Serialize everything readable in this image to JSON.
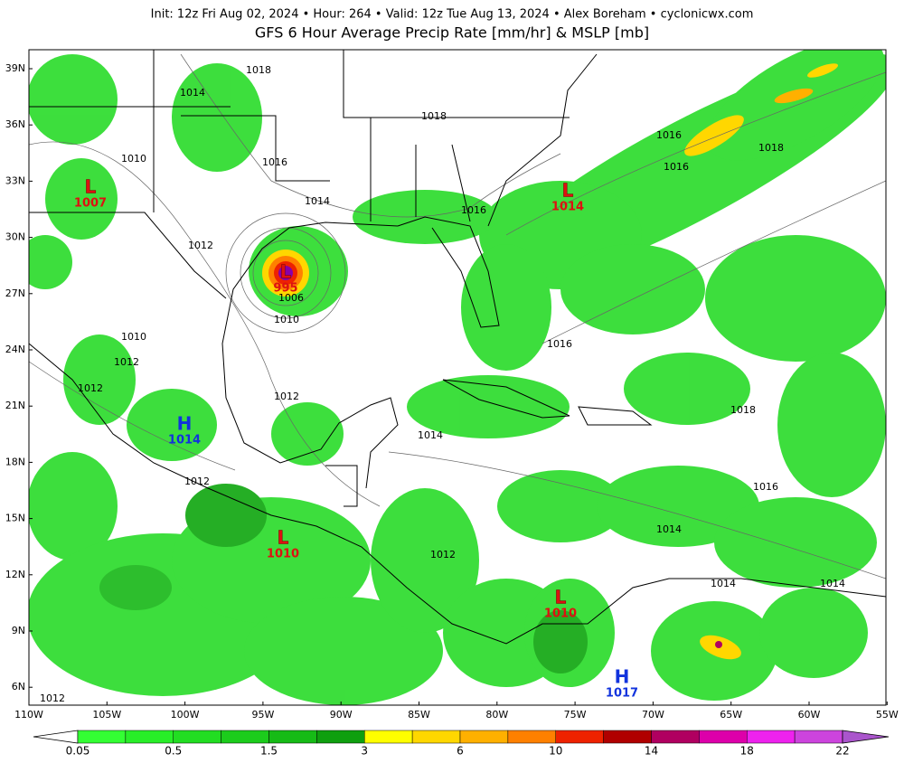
{
  "header": {
    "info": "Init: 12z Fri Aug 02, 2024 • Hour: 264 • Valid: 12z Tue Aug 13, 2024 • Alex Boreham • cyclonicwx.com",
    "title": "GFS 6 Hour Average Precip Rate [mm/hr] & MSLP [mb]"
  },
  "map": {
    "lat_labels": [
      "39N",
      "36N",
      "33N",
      "30N",
      "27N",
      "24N",
      "21N",
      "18N",
      "15N",
      "12N",
      "9N",
      "6N"
    ],
    "lon_labels": [
      "110W",
      "105W",
      "100W",
      "95W",
      "90W",
      "85W",
      "80W",
      "75W",
      "70W",
      "65W",
      "60W",
      "55W"
    ],
    "isobar_labels": [
      "1018",
      "1014",
      "1018",
      "1010",
      "1016",
      "1014",
      "1016",
      "1012",
      "1006",
      "1010",
      "1010",
      "1012",
      "1012",
      "1012",
      "1014",
      "1012",
      "1012",
      "1016",
      "1016",
      "1016",
      "1018",
      "1018",
      "1016",
      "1014",
      "1014",
      "1014",
      "1012"
    ],
    "systems": [
      {
        "letter": "L",
        "pressure": "1007"
      },
      {
        "letter": "L",
        "pressure": "1014"
      },
      {
        "letter": "L",
        "pressure": "995"
      },
      {
        "letter": "H",
        "pressure": "1014"
      },
      {
        "letter": "L",
        "pressure": "1010"
      },
      {
        "letter": "L",
        "pressure": "1010"
      },
      {
        "letter": "H",
        "pressure": "1017"
      }
    ]
  },
  "colorbar": {
    "labels": [
      "0.05",
      "0.5",
      "1.5",
      "3",
      "6",
      "10",
      "14",
      "18",
      "22"
    ],
    "colors": [
      "#33ff33",
      "#28ee28",
      "#22dd22",
      "#1ccc1c",
      "#16bb16",
      "#0f9f0f",
      "#ffff00",
      "#ffd700",
      "#ffb000",
      "#ff8000",
      "#ee2200",
      "#b00000",
      "#b00060",
      "#dd00aa",
      "#ee22ee",
      "#cc44dd",
      "#aa55cc"
    ]
  }
}
